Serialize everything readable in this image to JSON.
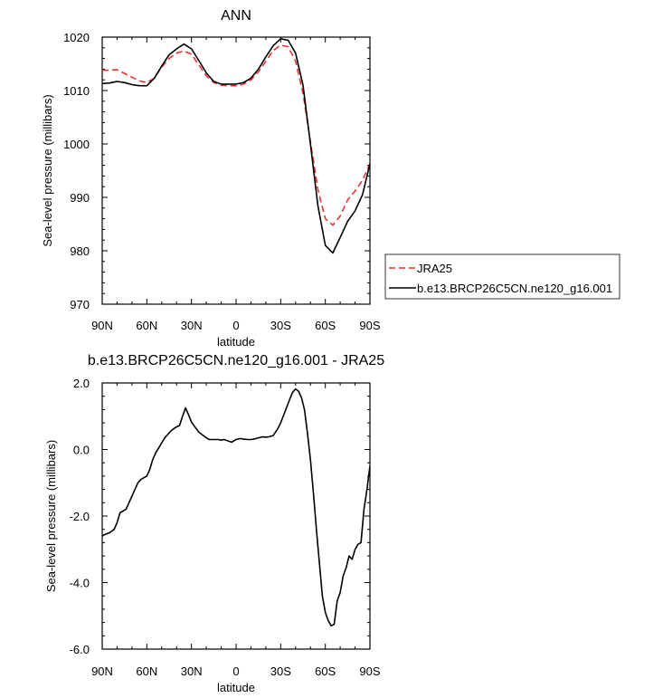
{
  "chart_data": [
    {
      "type": "line",
      "title": "ANN",
      "xlabel": "latitude",
      "ylabel": "Sea-level pressure (millibars)",
      "xlim": [
        90,
        -90
      ],
      "ylim": [
        970,
        1020
      ],
      "x_ticks": [
        90,
        60,
        30,
        0,
        -30,
        -60,
        -90
      ],
      "x_tick_labels": [
        "90N",
        "60N",
        "30N",
        "0",
        "30S",
        "60S",
        "90S"
      ],
      "y_ticks": [
        970,
        980,
        990,
        1000,
        1010,
        1020
      ],
      "y_tick_labels": [
        "970",
        "980",
        "990",
        "1000",
        "1010",
        "1020"
      ],
      "legend": "outside-right",
      "series": [
        {
          "name": "JRA25",
          "color": "#e8322d",
          "dash": "dashed",
          "x": [
            90,
            85,
            80,
            75,
            70,
            65,
            60,
            55,
            50,
            45,
            40,
            35,
            30,
            25,
            20,
            15,
            10,
            5,
            0,
            -5,
            -10,
            -15,
            -20,
            -25,
            -30,
            -35,
            -40,
            -45,
            -50,
            -55,
            -60,
            -65,
            -70,
            -75,
            -80,
            -85,
            -90
          ],
          "y": [
            1013.8,
            1013.8,
            1013.9,
            1013.2,
            1012.5,
            1011.8,
            1011.5,
            1012.3,
            1014.4,
            1016.0,
            1017.0,
            1017.4,
            1016.8,
            1014.8,
            1012.8,
            1011.5,
            1011.0,
            1010.9,
            1010.9,
            1011.2,
            1012.0,
            1013.5,
            1015.5,
            1017.5,
            1018.5,
            1018.2,
            1015.5,
            1009.5,
            1000.5,
            991.5,
            986.0,
            984.8,
            986.5,
            989.5,
            991.2,
            993.2,
            996.3
          ]
        },
        {
          "name": "b.e13.BRCP26C5CN.ne120_g16.001",
          "color": "#000000",
          "dash": "solid",
          "x": [
            90,
            85,
            80,
            75,
            70,
            65,
            60,
            55,
            50,
            45,
            40,
            35,
            30,
            25,
            20,
            15,
            10,
            5,
            0,
            -5,
            -10,
            -15,
            -20,
            -25,
            -30,
            -35,
            -40,
            -45,
            -50,
            -55,
            -60,
            -65,
            -70,
            -75,
            -80,
            -85,
            -90
          ],
          "y": [
            1011.3,
            1011.4,
            1011.7,
            1011.5,
            1011.1,
            1010.9,
            1010.9,
            1012.3,
            1014.6,
            1016.7,
            1017.8,
            1018.7,
            1017.8,
            1015.6,
            1013.3,
            1011.7,
            1011.2,
            1011.2,
            1011.2,
            1011.5,
            1012.3,
            1014.0,
            1016.3,
            1018.4,
            1019.7,
            1019.4,
            1017.0,
            1011.0,
            1000.0,
            988.5,
            981.0,
            979.6,
            982.5,
            985.5,
            987.5,
            990.5,
            996.3
          ]
        }
      ]
    },
    {
      "type": "line",
      "title": "b.e13.BRCP26C5CN.ne120_g16.001 - JRA25",
      "xlabel": "latitude",
      "ylabel": "Sea-level pressure (millibars)",
      "xlim": [
        90,
        -90
      ],
      "ylim": [
        -6,
        2
      ],
      "x_ticks": [
        90,
        60,
        30,
        0,
        -30,
        -60,
        -90
      ],
      "x_tick_labels": [
        "90N",
        "60N",
        "30N",
        "0",
        "30S",
        "60S",
        "90S"
      ],
      "y_ticks": [
        -6,
        -4,
        -2,
        0,
        2
      ],
      "y_tick_labels": [
        "-6.0",
        "-4.0",
        "-2.0",
        "0.0",
        "2.0"
      ],
      "series": [
        {
          "color": "#000000",
          "x": [
            90,
            88,
            85,
            82,
            80,
            78,
            76,
            74,
            72,
            70,
            68,
            66,
            64,
            62,
            60,
            58,
            56,
            54,
            52,
            50,
            48,
            46,
            44,
            42,
            40,
            38,
            36,
            34,
            32,
            30,
            28,
            25,
            22,
            20,
            18,
            15,
            12,
            10,
            8,
            5,
            3,
            0,
            -3,
            -5,
            -8,
            -10,
            -12,
            -15,
            -18,
            -20,
            -22,
            -25,
            -28,
            -30,
            -33,
            -36,
            -38,
            -40,
            -42,
            -44,
            -46,
            -48,
            -50,
            -52,
            -54,
            -56,
            -58,
            -60,
            -62,
            -64,
            -66,
            -68,
            -70,
            -72,
            -74,
            -76,
            -78,
            -80,
            -82,
            -84,
            -86,
            -88,
            -90
          ],
          "y": [
            -2.6,
            -2.55,
            -2.5,
            -2.4,
            -2.2,
            -1.9,
            -1.85,
            -1.8,
            -1.6,
            -1.4,
            -1.2,
            -1.0,
            -0.9,
            -0.85,
            -0.8,
            -0.6,
            -0.3,
            -0.1,
            0.05,
            0.2,
            0.35,
            0.45,
            0.55,
            0.62,
            0.68,
            0.72,
            1.0,
            1.25,
            1.05,
            0.82,
            0.7,
            0.52,
            0.42,
            0.35,
            0.3,
            0.3,
            0.3,
            0.28,
            0.3,
            0.25,
            0.22,
            0.3,
            0.33,
            0.31,
            0.3,
            0.3,
            0.31,
            0.35,
            0.38,
            0.37,
            0.38,
            0.42,
            0.62,
            0.8,
            1.15,
            1.5,
            1.72,
            1.82,
            1.75,
            1.55,
            1.2,
            0.5,
            -0.3,
            -1.3,
            -2.4,
            -3.4,
            -4.4,
            -4.9,
            -5.15,
            -5.3,
            -5.25,
            -4.55,
            -4.3,
            -3.8,
            -3.55,
            -3.2,
            -3.3,
            -3.0,
            -2.85,
            -2.8,
            -1.8,
            -1.2,
            -0.5
          ]
        }
      ]
    }
  ]
}
